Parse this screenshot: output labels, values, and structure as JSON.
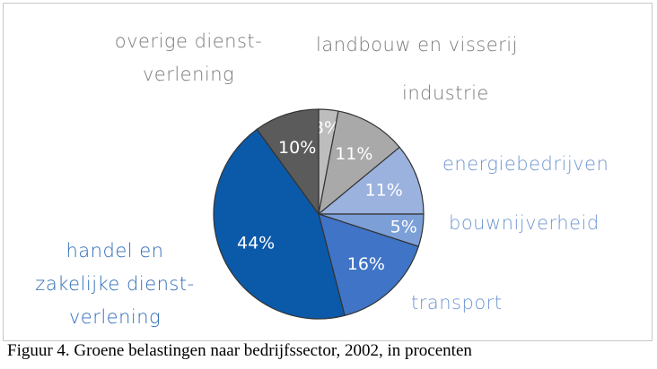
{
  "chart_data": {
    "type": "pie",
    "categories": [
      "landbouw en visserij",
      "industrie",
      "energiebedrijven",
      "bouwnijverheid",
      "transport",
      "handel en\nzakelijke dienst-\nverlening",
      "overige dienst-\nverlening"
    ],
    "values": [
      3,
      11,
      11,
      5,
      16,
      44,
      10
    ],
    "value_labels": [
      "3%",
      "11%",
      "11%",
      "5%",
      "16%",
      "44%",
      "10%"
    ],
    "colors": [
      "#bdbdbd",
      "#a9a9a9",
      "#9bb2de",
      "#7c9fd8",
      "#3f74c6",
      "#0b5aa9",
      "#5b5b5b"
    ],
    "label_colors": [
      "#7a7a7a",
      "#7a7a7a",
      "#6f96d2",
      "#6f96d2",
      "#6f96d2",
      "#2f6db7",
      "#7a7a7a"
    ]
  },
  "caption": "Figuur 4. Groene belastingen naar bedrijfssector, 2002, in procenten"
}
